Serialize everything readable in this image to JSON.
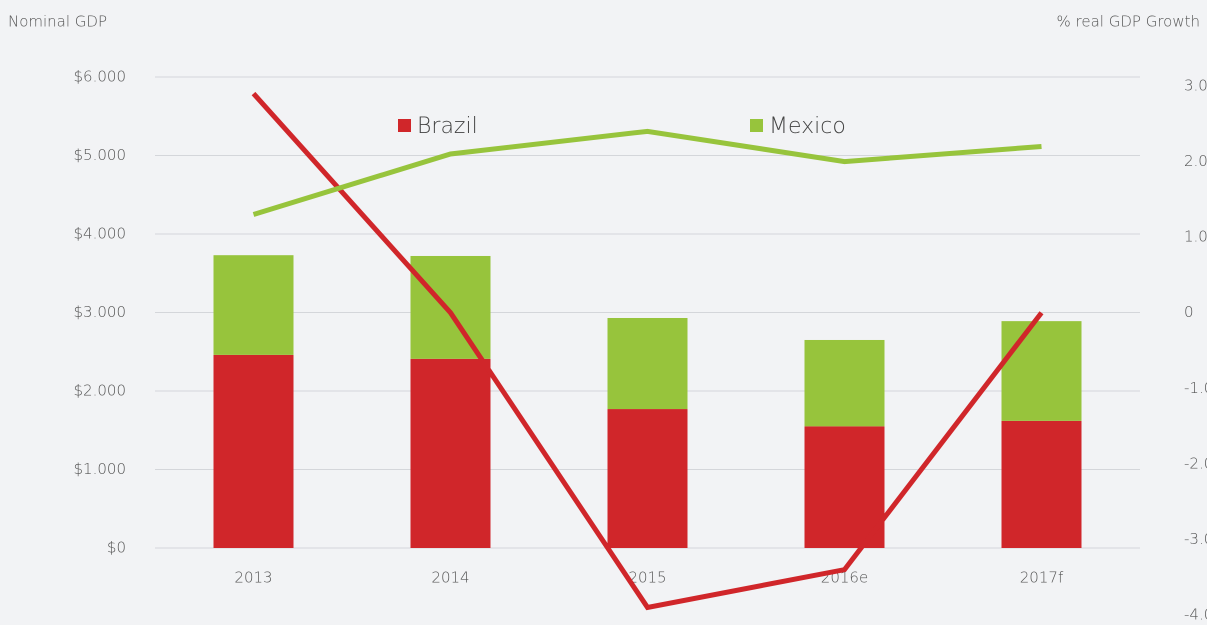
{
  "chart_data": {
    "type": "bar",
    "y_label": "Nominal GDP",
    "y2_label": "% real GDP Growth",
    "categories": [
      "2013",
      "2014",
      "2015",
      "2016e",
      "2017f"
    ],
    "stacked": true,
    "series": [
      {
        "name": "Brazil",
        "color": "#d0262a",
        "values": [
          2460,
          2410,
          1770,
          1550,
          1620
        ],
        "growth": [
          2.9,
          0.0,
          -3.9,
          -3.4,
          0.0
        ]
      },
      {
        "name": "Mexico",
        "color": "#97c43c",
        "values": [
          1270,
          1310,
          1160,
          1100,
          1270
        ],
        "growth": [
          1.3,
          2.1,
          2.4,
          2.0,
          2.2
        ]
      }
    ],
    "growth_axis": "y2",
    "ylim": [
      0,
      6000
    ],
    "yticks": [
      {
        "value": 0,
        "label": "$0"
      },
      {
        "value": 1000,
        "label": "$1.000"
      },
      {
        "value": 2000,
        "label": "$2.000"
      },
      {
        "value": 3000,
        "label": "$3.000"
      },
      {
        "value": 4000,
        "label": "$4.000"
      },
      {
        "value": 5000,
        "label": "$5.000"
      },
      {
        "value": 6000,
        "label": "$6.000"
      }
    ],
    "y2lim": [
      -4,
      3
    ],
    "y2ticks": [
      {
        "value": 3,
        "label": "3.0"
      },
      {
        "value": 2,
        "label": "2.0"
      },
      {
        "value": 1,
        "label": "1.0"
      },
      0,
      {
        "value": -1,
        "label": "-1.0"
      },
      {
        "value": -2,
        "label": "-2.0"
      },
      {
        "value": -3,
        "label": "-3.0"
      },
      {
        "value": -4,
        "label": "-4.0"
      }
    ],
    "grid": true,
    "legend": "top"
  }
}
